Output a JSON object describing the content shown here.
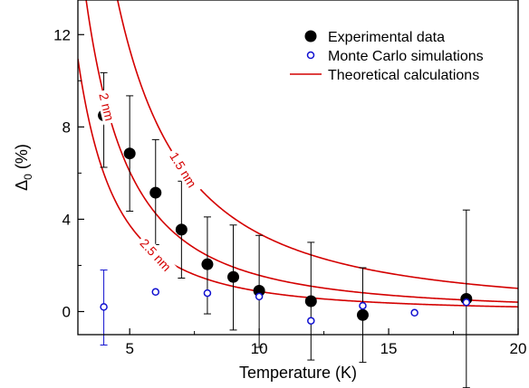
{
  "chart_data": {
    "type": "scatter",
    "xlabel": "Temperature (K)",
    "ylabel": "Δ",
    "ylabel_subscript": "0",
    "ylabel_unit": " (%)",
    "xlim": [
      3,
      20
    ],
    "ylim": [
      -1,
      13.5
    ],
    "x_ticks": [
      5,
      10,
      15,
      20
    ],
    "y_ticks": [
      0,
      4,
      8,
      12
    ],
    "legend_position": "top-right",
    "grid": false,
    "colors": {
      "experimental": "#000000",
      "monte_carlo": "#1010d0",
      "theory": "#d40000"
    },
    "legend": [
      {
        "label": "Experimental data",
        "marker": "filled-circle",
        "color": "#000000"
      },
      {
        "label": "Monte Carlo simulations",
        "marker": "open-circle",
        "color": "#1010d0"
      },
      {
        "label": "Theoretical calculations",
        "marker": "line",
        "color": "#d40000"
      }
    ],
    "series": [
      {
        "name": "Experimental data",
        "marker": "filled-circle",
        "points": [
          {
            "x": 4,
            "y": 8.5,
            "err_low": 6.25,
            "err_high": 10.35
          },
          {
            "x": 5,
            "y": 6.85,
            "err_low": 4.35,
            "err_high": 9.35
          },
          {
            "x": 6,
            "y": 5.15,
            "err_low": 2.9,
            "err_high": 7.45
          },
          {
            "x": 7,
            "y": 3.55,
            "err_low": 1.45,
            "err_high": 5.65
          },
          {
            "x": 8,
            "y": 2.05,
            "err_low": -0.1,
            "err_high": 4.1
          },
          {
            "x": 9,
            "y": 1.5,
            "err_low": -0.8,
            "err_high": 3.75
          },
          {
            "x": 10,
            "y": 0.9,
            "err_low": -1.55,
            "err_high": 3.3
          },
          {
            "x": 12,
            "y": 0.45,
            "err_low": -2.1,
            "err_high": 3.0
          },
          {
            "x": 14,
            "y": -0.15,
            "err_low": -2.2,
            "err_high": 1.9
          },
          {
            "x": 18,
            "y": 0.55,
            "err_low": -3.3,
            "err_high": 4.4
          }
        ]
      },
      {
        "name": "Monte Carlo simulations",
        "marker": "open-circle",
        "points": [
          {
            "x": 4,
            "y": 0.2,
            "err_low": -1.45,
            "err_high": 1.8
          },
          {
            "x": 6,
            "y": 0.85
          },
          {
            "x": 8,
            "y": 0.8
          },
          {
            "x": 10,
            "y": 0.65
          },
          {
            "x": 12,
            "y": -0.4
          },
          {
            "x": 14,
            "y": 0.25
          },
          {
            "x": 16,
            "y": -0.05
          },
          {
            "x": 18,
            "y": 0.4
          }
        ]
      }
    ],
    "curves": [
      {
        "label": "1.5 nm",
        "a": 190,
        "n": 1.75,
        "label_x": 6.6
      },
      {
        "label": "2 nm",
        "a": 140,
        "n": 1.95,
        "label_x": 3.95
      },
      {
        "label": "2.5 nm",
        "a": 110,
        "n": 2.1,
        "label_x": 5.4
      }
    ]
  }
}
